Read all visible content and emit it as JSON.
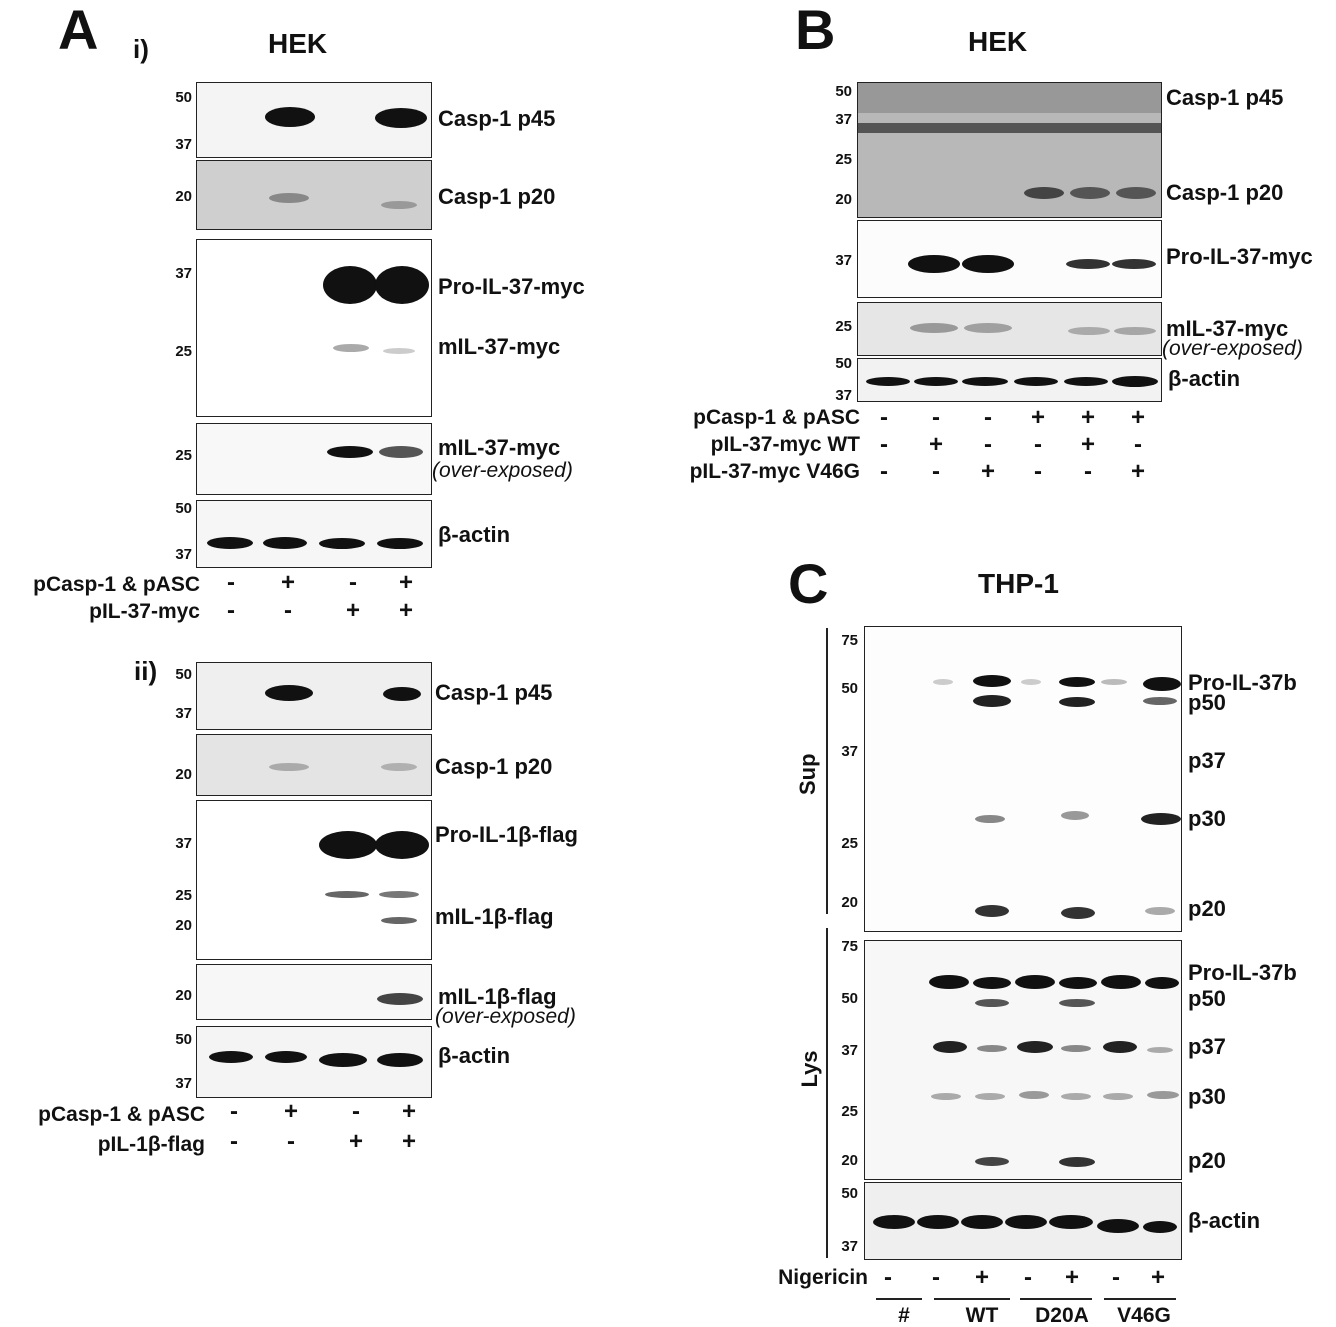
{
  "panel_a": {
    "letter": "A",
    "sub_i": "i)",
    "sub_ii": "ii)",
    "title": "HEK",
    "i_blots": {
      "p45": {
        "label": "Casp-1 p45",
        "mw": [
          "50",
          "37"
        ]
      },
      "p20": {
        "label": "Casp-1 p20",
        "mw": [
          "20"
        ]
      },
      "il37": {
        "label1": "Pro-IL-37-myc",
        "label2": "mIL-37-myc",
        "mw": [
          "37",
          "25"
        ]
      },
      "il37_over": {
        "label": "mIL-37-myc",
        "note": "(over-exposed)",
        "mw": [
          "25"
        ]
      },
      "actin": {
        "label": "β-actin",
        "mw": [
          "50",
          "37"
        ]
      }
    },
    "i_rows": [
      {
        "label": "pCasp-1 & pASC",
        "signs": [
          "-",
          "+",
          "-",
          "+"
        ]
      },
      {
        "label": "pIL-37-myc",
        "signs": [
          "-",
          "-",
          "+",
          "+"
        ]
      }
    ],
    "ii_blots": {
      "p45": {
        "label": "Casp-1 p45",
        "mw": [
          "50",
          "37"
        ]
      },
      "p20": {
        "label": "Casp-1 p20",
        "mw": [
          "20"
        ]
      },
      "il1b": {
        "label1": "Pro-IL-1β-flag",
        "label2": "mIL-1β-flag",
        "mw": [
          "37",
          "25",
          "20"
        ]
      },
      "il1b_over": {
        "label": "mIL-1β-flag",
        "note": "(over-exposed)",
        "mw": [
          "20"
        ]
      },
      "actin": {
        "label": "β-actin",
        "mw": [
          "50",
          "37"
        ]
      }
    },
    "ii_rows": [
      {
        "label": "pCasp-1 & pASC",
        "signs": [
          "-",
          "+",
          "-",
          "+"
        ]
      },
      {
        "label": "pIL-1β-flag",
        "signs": [
          "-",
          "-",
          "+",
          "+"
        ]
      }
    ]
  },
  "panel_b": {
    "letter": "B",
    "title": "HEK",
    "blots": {
      "casp": {
        "label1": "Casp-1 p45",
        "label2": "Casp-1 p20",
        "mw": [
          "50",
          "37",
          "25",
          "20"
        ]
      },
      "il37": {
        "label": "Pro-IL-37-myc",
        "mw": [
          "37"
        ]
      },
      "il37_over": {
        "label": "mIL-37-myc",
        "note": "(over-exposed)",
        "mw": [
          "25"
        ]
      },
      "actin": {
        "label": "β-actin",
        "mw": [
          "50",
          "37"
        ]
      }
    },
    "rows": [
      {
        "label": "pCasp-1 & pASC",
        "signs": [
          "-",
          "-",
          "-",
          "+",
          "+",
          "+"
        ]
      },
      {
        "label": "pIL-37-myc WT",
        "signs": [
          "-",
          "+",
          "-",
          "-",
          "+",
          "-"
        ]
      },
      {
        "label": "pIL-37-myc V46G",
        "signs": [
          "-",
          "-",
          "+",
          "-",
          "-",
          "+"
        ]
      }
    ]
  },
  "panel_c": {
    "letter": "C",
    "title": "THP-1",
    "sup_label": "Sup",
    "lys_label": "Lys",
    "sup": {
      "mw": [
        "75",
        "50",
        "37",
        "25",
        "20"
      ],
      "labels": [
        "Pro-IL-37b",
        "p50",
        "p37",
        "p30",
        "p20"
      ]
    },
    "lys": {
      "mw": [
        "75",
        "50",
        "37",
        "25",
        "20"
      ],
      "labels": [
        "Pro-IL-37b",
        "p50",
        "p37",
        "p30",
        "p20"
      ]
    },
    "actin": {
      "label": "β-actin",
      "mw": [
        "50",
        "37"
      ]
    },
    "nigericin": {
      "label": "Nigericin",
      "signs": [
        "-",
        "-",
        "+",
        "-",
        "+",
        "-",
        "+"
      ]
    },
    "groups": [
      "#",
      "WT",
      "D20A",
      "V46G"
    ]
  }
}
